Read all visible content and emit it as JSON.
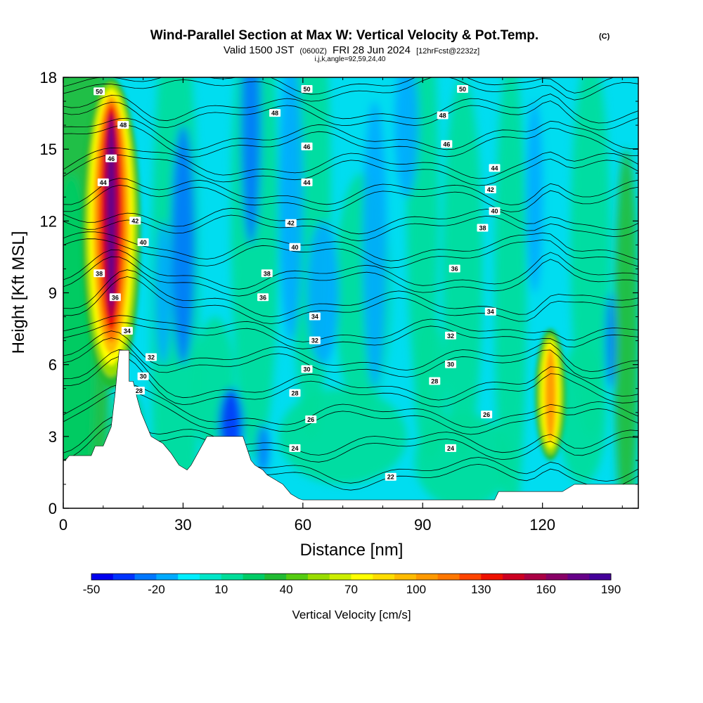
{
  "title": {
    "main": "Wind-Parallel Section at Max W: Vertical Velocity & Pot.Temp.",
    "copyright": "(C)",
    "valid_prefix": "Valid 1500 JST",
    "valid_utc": "(0600Z)",
    "valid_date": "FRI 28 Jun 2024",
    "forecast": "[12hrFcst@2232z]",
    "indices": "i,j,k,angle=92,59,24,40"
  },
  "chart_data": {
    "type": "heatmap",
    "title": "Wind-Parallel Section at Max W: Vertical Velocity & Pot.Temp.",
    "xlabel": "Distance [nm]",
    "ylabel": "Height [Kft MSL]",
    "xlim": [
      0,
      144
    ],
    "ylim": [
      0,
      18
    ],
    "x_ticks": [
      "0",
      "30",
      "60",
      "90",
      "120"
    ],
    "x_tick_values": [
      0,
      30,
      60,
      90,
      120
    ],
    "y_ticks": [
      "0",
      "3",
      "6",
      "9",
      "12",
      "15",
      "18"
    ],
    "y_tick_values": [
      0,
      3,
      6,
      9,
      12,
      15,
      18
    ],
    "colorbar": {
      "label": "Vertical Velocity [cm/s]",
      "tick_labels": [
        "-50",
        "-20",
        "10",
        "40",
        "70",
        "100",
        "130",
        "160",
        "190"
      ],
      "tick_values": [
        -50,
        -20,
        10,
        40,
        70,
        100,
        130,
        160,
        190
      ],
      "colors": [
        "#0000ee",
        "#0033ff",
        "#0077ff",
        "#00aaff",
        "#00eeff",
        "#00e6c8",
        "#00dd99",
        "#00cc66",
        "#22bb33",
        "#55cc11",
        "#99dd00",
        "#ccee00",
        "#ffff00",
        "#ffdd00",
        "#ffbb00",
        "#ff9900",
        "#ff7700",
        "#ff4400",
        "#ee1100",
        "#cc0022",
        "#aa0044",
        "#880066",
        "#660088",
        "#440099"
      ]
    },
    "terrain_profile": [
      [
        0,
        2
      ],
      [
        0.5,
        2.0
      ],
      [
        1.5,
        2.2
      ],
      [
        7,
        2.2
      ],
      [
        8,
        2.6
      ],
      [
        10,
        2.6
      ],
      [
        11,
        3.0
      ],
      [
        12,
        3.4
      ],
      [
        13,
        4.8
      ],
      [
        14,
        6.6
      ],
      [
        16.5,
        6.6
      ],
      [
        16.5,
        5.3
      ],
      [
        17.5,
        5.3
      ],
      [
        18.5,
        4.6
      ],
      [
        19.5,
        4.0
      ],
      [
        21,
        3.4
      ],
      [
        22,
        3.0
      ],
      [
        25,
        2.7
      ],
      [
        27,
        2.3
      ],
      [
        29,
        1.8
      ],
      [
        31,
        1.6
      ],
      [
        32,
        1.8
      ],
      [
        34,
        2.4
      ],
      [
        36,
        3.0
      ],
      [
        45,
        3.0
      ],
      [
        46,
        2.5
      ],
      [
        47,
        2.0
      ],
      [
        48,
        1.8
      ],
      [
        49,
        1.7
      ],
      [
        50,
        1.6
      ],
      [
        51,
        1.4
      ],
      [
        53,
        1.2
      ],
      [
        55,
        1.0
      ],
      [
        56,
        0.8
      ],
      [
        57,
        0.6
      ],
      [
        58,
        0.5
      ],
      [
        59,
        0.4
      ],
      [
        60,
        0.35
      ],
      [
        108,
        0.35
      ],
      [
        109,
        0.7
      ],
      [
        125,
        0.7
      ],
      [
        128,
        1.0
      ],
      [
        144,
        1.0
      ],
      [
        144,
        1.7
      ]
    ],
    "updrafts": [
      {
        "x": 12,
        "y_bottom": 5,
        "y_top": 18,
        "peak": 190
      },
      {
        "x": 122,
        "y_bottom": 2,
        "y_top": 7.5,
        "peak": 120
      }
    ],
    "theta_contours": [
      {
        "level": 22,
        "x": 82,
        "y": 1.3
      },
      {
        "level": 24,
        "x": 58,
        "y": 2.5
      },
      {
        "level": 24,
        "x": 97,
        "y": 2.5
      },
      {
        "level": 26,
        "x": 62,
        "y": 3.7
      },
      {
        "level": 26,
        "x": 106,
        "y": 3.9
      },
      {
        "level": 28,
        "x": 19,
        "y": 4.9
      },
      {
        "level": 28,
        "x": 58,
        "y": 4.8
      },
      {
        "level": 28,
        "x": 93,
        "y": 5.3
      },
      {
        "level": 30,
        "x": 20,
        "y": 5.5
      },
      {
        "level": 30,
        "x": 61,
        "y": 5.8
      },
      {
        "level": 30,
        "x": 97,
        "y": 6.0
      },
      {
        "level": 32,
        "x": 22,
        "y": 6.3
      },
      {
        "level": 32,
        "x": 63,
        "y": 7.0
      },
      {
        "level": 32,
        "x": 97,
        "y": 7.2
      },
      {
        "level": 34,
        "x": 16,
        "y": 7.4
      },
      {
        "level": 34,
        "x": 63,
        "y": 8.0
      },
      {
        "level": 34,
        "x": 107,
        "y": 8.2
      },
      {
        "level": 36,
        "x": 13,
        "y": 8.8
      },
      {
        "level": 36,
        "x": 50,
        "y": 8.8
      },
      {
        "level": 36,
        "x": 98,
        "y": 10.0
      },
      {
        "level": 38,
        "x": 9,
        "y": 9.8
      },
      {
        "level": 38,
        "x": 51,
        "y": 9.8
      },
      {
        "level": 38,
        "x": 105,
        "y": 11.7
      },
      {
        "level": 40,
        "x": 20,
        "y": 11.1
      },
      {
        "level": 40,
        "x": 58,
        "y": 10.9
      },
      {
        "level": 40,
        "x": 108,
        "y": 12.4
      },
      {
        "level": 42,
        "x": 18,
        "y": 12.0
      },
      {
        "level": 42,
        "x": 57,
        "y": 11.9
      },
      {
        "level": 42,
        "x": 107,
        "y": 13.3
      },
      {
        "level": 44,
        "x": 10,
        "y": 13.6
      },
      {
        "level": 44,
        "x": 61,
        "y": 13.6
      },
      {
        "level": 44,
        "x": 108,
        "y": 14.2
      },
      {
        "level": 46,
        "x": 12,
        "y": 14.6
      },
      {
        "level": 46,
        "x": 61,
        "y": 15.1
      },
      {
        "level": 46,
        "x": 96,
        "y": 15.2
      },
      {
        "level": 48,
        "x": 15,
        "y": 16.0
      },
      {
        "level": 48,
        "x": 53,
        "y": 16.5
      },
      {
        "level": 48,
        "x": 95,
        "y": 16.4
      },
      {
        "level": 50,
        "x": 9,
        "y": 17.4
      },
      {
        "level": 50,
        "x": 61,
        "y": 17.5
      },
      {
        "level": 50,
        "x": 100,
        "y": 17.5
      }
    ]
  }
}
